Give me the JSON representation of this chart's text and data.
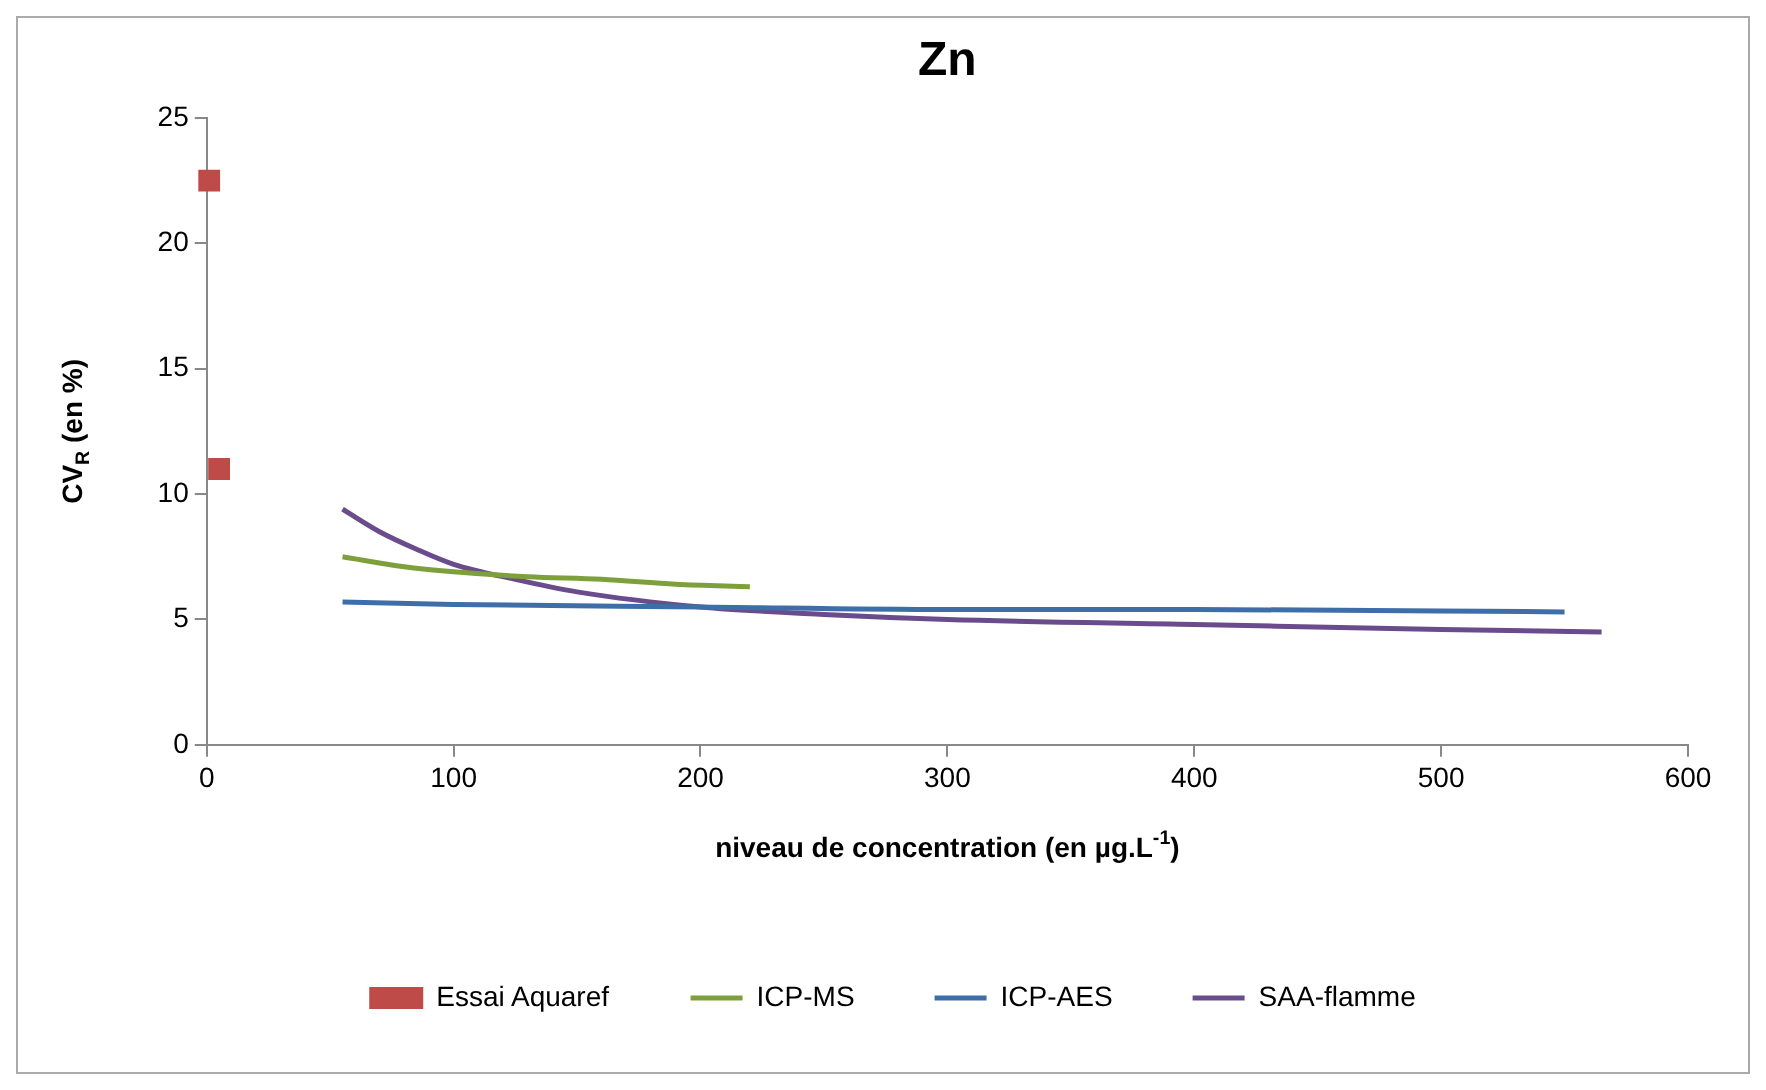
{
  "chart_data": {
    "type": "line",
    "title": "Zn",
    "xlabel": "niveau de concentration (en µg.L$^{-1}$)",
    "ylabel": "CV$_{R}$ (en %)",
    "xlim": [
      0,
      600
    ],
    "xticks": [
      0,
      100,
      200,
      300,
      400,
      500,
      600
    ],
    "ylim": [
      0,
      25
    ],
    "yticks": [
      0,
      5,
      10,
      15,
      20,
      25
    ],
    "grid": false,
    "legend": "bottom",
    "series": [
      {
        "name": "Essai Aquaref",
        "type": "scatter",
        "marker": "square",
        "color": "#be4b48",
        "x": [
          1,
          5
        ],
        "values": [
          22.5,
          11
        ]
      },
      {
        "name": "ICP-MS",
        "marker": "none",
        "color": "#7ea03c",
        "x": [
          55,
          80,
          100,
          130,
          160,
          190,
          220
        ],
        "values": [
          7.5,
          7.1,
          6.9,
          6.7,
          6.6,
          6.4,
          6.3
        ]
      },
      {
        "name": "ICP-AES",
        "marker": "none",
        "color": "#3e6ea8",
        "x": [
          55,
          100,
          200,
          300,
          400,
          550
        ],
        "values": [
          5.7,
          5.6,
          5.5,
          5.4,
          5.4,
          5.3
        ]
      },
      {
        "name": "SAA-flamme",
        "marker": "none",
        "color": "#6a4c8c",
        "x": [
          55,
          70,
          85,
          100,
          125,
          150,
          200,
          250,
          300,
          400,
          500,
          565
        ],
        "values": [
          9.4,
          8.5,
          7.8,
          7.2,
          6.6,
          6.1,
          5.5,
          5.2,
          5.0,
          4.8,
          4.6,
          4.5
        ]
      }
    ]
  }
}
